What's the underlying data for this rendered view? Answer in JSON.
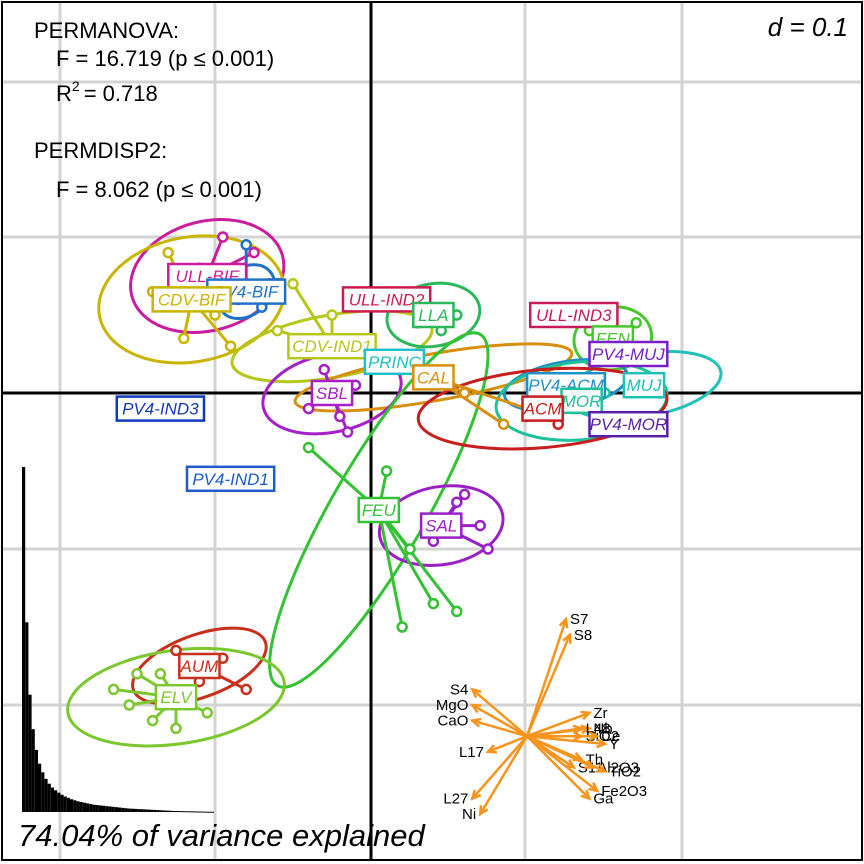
{
  "chart_data": {
    "type": "scatter",
    "subtype": "pcoa-biplot",
    "scale_label": "d = 0.1",
    "grid": true,
    "permanova": {
      "title": "PERMANOVA:",
      "f_line": "F = 16.719 (p ≤ 0.001)",
      "r2_label": "R",
      "r2_sup": "2",
      "r2_value": "= 0.718"
    },
    "permdisp": {
      "title": "PERMDISP2:",
      "f_line": "F = 8.062 (p ≤ 0.001)"
    },
    "scree": {
      "caption": "74.04% of variance explained",
      "values": [
        1.0,
        0.55,
        0.34,
        0.24,
        0.18,
        0.14,
        0.115,
        0.096,
        0.082,
        0.071,
        0.063,
        0.056,
        0.05,
        0.045,
        0.041,
        0.037,
        0.034,
        0.031,
        0.029,
        0.027,
        0.025,
        0.023,
        0.021,
        0.02,
        0.019,
        0.018,
        0.017,
        0.016,
        0.015,
        0.014,
        0.013,
        0.012,
        0.011,
        0.01,
        0.0095,
        0.009,
        0.0085,
        0.008,
        0.0075,
        0.007,
        0.0065,
        0.006,
        0.0055,
        0.005,
        0.0045,
        0.004,
        0.0035,
        0.003,
        0.0028,
        0.0026,
        0.0024,
        0.0022,
        0.002,
        0.0018,
        0.0016,
        0.0014,
        0.0012,
        0.001,
        0.0008,
        0.0006
      ]
    },
    "groups": [
      {
        "name": "ULL-BIF",
        "color": "#CC1C9E",
        "center": [
          -0.21,
          0.15
        ],
        "points": [
          [
            -0.19,
            0.2
          ],
          [
            -0.15,
            0.18
          ],
          [
            -0.13,
            0.14
          ],
          [
            -0.17,
            0.12
          ],
          [
            -0.22,
            0.16
          ]
        ],
        "ellipse": [
          0.1,
          0.07,
          -15
        ]
      },
      {
        "name": "PV4-BIF",
        "color": "#1E72C7",
        "center": [
          -0.16,
          0.13
        ],
        "points": [
          [
            -0.16,
            0.19
          ],
          [
            -0.12,
            0.14
          ],
          [
            -0.14,
            0.11
          ]
        ],
        "ellipse": [
          0.04,
          0.03,
          -40
        ]
      },
      {
        "name": "CDV-BIF",
        "color": "#C9B400",
        "center": [
          -0.23,
          0.12
        ],
        "points": [
          [
            -0.26,
            0.18
          ],
          [
            -0.2,
            0.1
          ],
          [
            -0.24,
            0.07
          ],
          [
            -0.18,
            0.06
          ],
          [
            -0.28,
            0.13
          ]
        ],
        "ellipse": [
          0.12,
          0.08,
          -10
        ]
      },
      {
        "name": "CDV-IND1",
        "color": "#B5C71A",
        "center": [
          -0.05,
          0.06
        ],
        "points": [
          [
            -0.1,
            0.14
          ],
          [
            -0.05,
            0.1
          ],
          [
            -0.12,
            0.08
          ]
        ],
        "ellipse": [
          0.13,
          0.04,
          -10
        ]
      },
      {
        "name": "ULL-IND2",
        "color": "#CC1C4E",
        "center": [
          0.02,
          0.12
        ],
        "points": [
          [
            0.02,
            0.12
          ]
        ],
        "ellipse": [
          0,
          0,
          0
        ]
      },
      {
        "name": "LLA",
        "color": "#2CB85A",
        "center": [
          0.08,
          0.1
        ],
        "points": [
          [
            0.09,
            0.08
          ],
          [
            0.11,
            0.1
          ],
          [
            0.07,
            0.12
          ],
          [
            0.06,
            0.09
          ]
        ],
        "ellipse": [
          0.06,
          0.04,
          -10
        ]
      },
      {
        "name": "PRINC",
        "color": "#1FC1C8",
        "center": [
          0.03,
          0.04
        ],
        "points": [
          [
            0.04,
            0.03
          ]
        ],
        "ellipse": [
          0,
          0,
          0
        ]
      },
      {
        "name": "CAL",
        "color": "#D68F0E",
        "center": [
          0.08,
          0.02
        ],
        "points": [
          [
            0.12,
            0.0
          ],
          [
            0.17,
            -0.04
          ],
          [
            0.23,
            -0.03
          ]
        ],
        "ellipse": [
          0.18,
          0.03,
          -10
        ]
      },
      {
        "name": "SBL",
        "color": "#A61FC7",
        "center": [
          -0.05,
          0.0
        ],
        "points": [
          [
            -0.08,
            -0.02
          ],
          [
            -0.04,
            -0.03
          ],
          [
            -0.02,
            0.01
          ],
          [
            -0.06,
            0.03
          ],
          [
            -0.03,
            -0.05
          ]
        ],
        "ellipse": [
          0.09,
          0.05,
          -12
        ]
      },
      {
        "name": "PV4-IND3",
        "color": "#1039C0",
        "center": [
          -0.27,
          -0.02
        ],
        "points": [
          [
            -0.27,
            -0.02
          ]
        ],
        "ellipse": [
          0,
          0,
          0
        ]
      },
      {
        "name": "PV4-IND1",
        "color": "#1E5CC7",
        "center": [
          -0.18,
          -0.11
        ],
        "points": [
          [
            -0.18,
            -0.11
          ]
        ],
        "ellipse": [
          0,
          0,
          0
        ]
      },
      {
        "name": "FEU",
        "color": "#33C233",
        "center": [
          0.01,
          -0.15
        ],
        "points": [
          [
            -0.08,
            -0.07
          ],
          [
            0.02,
            -0.1
          ],
          [
            0.05,
            -0.2
          ],
          [
            0.08,
            -0.27
          ],
          [
            0.11,
            -0.28
          ],
          [
            0.04,
            -0.3
          ]
        ],
        "ellipse": [
          0.26,
          0.06,
          -60
        ]
      },
      {
        "name": "SAL",
        "color": "#9A1FC7",
        "center": [
          0.09,
          -0.17
        ],
        "points": [
          [
            0.11,
            -0.14
          ],
          [
            0.14,
            -0.17
          ],
          [
            0.15,
            -0.2
          ],
          [
            0.08,
            -0.19
          ],
          [
            0.12,
            -0.13
          ]
        ],
        "ellipse": [
          0.08,
          0.05,
          -10
        ]
      },
      {
        "name": "ULL-IND3",
        "color": "#C71A5C",
        "center": [
          0.26,
          0.1
        ],
        "points": [
          [
            0.26,
            0.1
          ]
        ],
        "ellipse": [
          0,
          0,
          0
        ]
      },
      {
        "name": "FEN",
        "color": "#47C72E",
        "center": [
          0.31,
          0.07
        ],
        "points": [
          [
            0.28,
            0.08
          ],
          [
            0.34,
            0.09
          ],
          [
            0.32,
            0.05
          ]
        ],
        "ellipse": [
          0.05,
          0.04,
          -10
        ]
      },
      {
        "name": "PV4-MUJ",
        "color": "#7A1FC7",
        "center": [
          0.33,
          0.05
        ],
        "points": [
          [
            0.33,
            0.05
          ]
        ],
        "ellipse": [
          0,
          0,
          0
        ]
      },
      {
        "name": "MUJ",
        "color": "#1FC1B8",
        "center": [
          0.35,
          0.01
        ],
        "points": [
          [
            0.34,
            0.02
          ],
          [
            0.37,
            0.0
          ]
        ],
        "ellipse": [
          0.1,
          0.04,
          -10
        ]
      },
      {
        "name": "PV4-ACM",
        "color": "#1F8FC7",
        "center": [
          0.25,
          0.01
        ],
        "points": [
          [
            0.25,
            0.01
          ]
        ],
        "ellipse": [
          0.08,
          0.03,
          -10
        ]
      },
      {
        "name": "MOR",
        "color": "#1FC19A",
        "center": [
          0.27,
          -0.01
        ],
        "points": [
          [
            0.26,
            -0.02
          ],
          [
            0.3,
            0.0
          ]
        ],
        "ellipse": [
          0.11,
          0.05,
          -5
        ]
      },
      {
        "name": "PV4-MOR",
        "color": "#5A1FA8",
        "center": [
          0.33,
          -0.04
        ],
        "points": [
          [
            0.33,
            -0.04
          ]
        ],
        "ellipse": [
          0,
          0,
          0
        ]
      },
      {
        "name": "ACM",
        "color": "#C81E1E",
        "center": [
          0.22,
          -0.02
        ],
        "points": [
          [
            0.2,
            -0.03
          ],
          [
            0.24,
            -0.04
          ],
          [
            0.22,
            -0.01
          ]
        ],
        "ellipse": [
          0.16,
          0.05,
          -5
        ]
      },
      {
        "name": "AUM",
        "color": "#C8301E",
        "center": [
          -0.22,
          -0.35
        ],
        "points": [
          [
            -0.25,
            -0.33
          ],
          [
            -0.19,
            -0.34
          ],
          [
            -0.16,
            -0.38
          ],
          [
            -0.22,
            -0.37
          ]
        ],
        "ellipse": [
          0.09,
          0.04,
          -20
        ]
      },
      {
        "name": "ELV",
        "color": "#7AC72E",
        "center": [
          -0.25,
          -0.39
        ],
        "points": [
          [
            -0.33,
            -0.38
          ],
          [
            -0.31,
            -0.4
          ],
          [
            -0.28,
            -0.42
          ],
          [
            -0.25,
            -0.43
          ],
          [
            -0.21,
            -0.41
          ],
          [
            -0.3,
            -0.36
          ],
          [
            -0.27,
            -0.36
          ]
        ],
        "ellipse": [
          0.14,
          0.06,
          -8
        ]
      }
    ],
    "loadings": {
      "color": "#F7941D",
      "origin": [
        0.2,
        -0.44
      ],
      "vectors": [
        {
          "name": "S7",
          "end": [
            0.25,
            -0.29
          ]
        },
        {
          "name": "S8",
          "end": [
            0.255,
            -0.31
          ]
        },
        {
          "name": "S4",
          "end": [
            0.13,
            -0.38
          ]
        },
        {
          "name": "MgO",
          "end": [
            0.13,
            -0.4
          ]
        },
        {
          "name": "CaO",
          "end": [
            0.13,
            -0.42
          ]
        },
        {
          "name": "L17",
          "end": [
            0.15,
            -0.46
          ]
        },
        {
          "name": "L27",
          "end": [
            0.13,
            -0.52
          ]
        },
        {
          "name": "Ni",
          "end": [
            0.14,
            -0.54
          ]
        },
        {
          "name": "Zr",
          "end": [
            0.28,
            -0.41
          ]
        },
        {
          "name": "Nb",
          "end": [
            0.28,
            -0.43
          ]
        },
        {
          "name": "L48",
          "end": [
            0.27,
            -0.43
          ]
        },
        {
          "name": "SiO2",
          "end": [
            0.27,
            -0.44
          ]
        },
        {
          "name": "Ce",
          "end": [
            0.29,
            -0.44
          ]
        },
        {
          "name": "Y",
          "end": [
            0.3,
            -0.45
          ]
        },
        {
          "name": "S11",
          "end": [
            0.26,
            -0.48
          ]
        },
        {
          "name": "Th",
          "end": [
            0.27,
            -0.47
          ]
        },
        {
          "name": "Al2O3",
          "end": [
            0.285,
            -0.48
          ]
        },
        {
          "name": "TiO2",
          "end": [
            0.3,
            -0.485
          ]
        },
        {
          "name": "Fe2O3",
          "end": [
            0.29,
            -0.51
          ]
        },
        {
          "name": "Ga",
          "end": [
            0.28,
            -0.52
          ]
        }
      ]
    }
  }
}
